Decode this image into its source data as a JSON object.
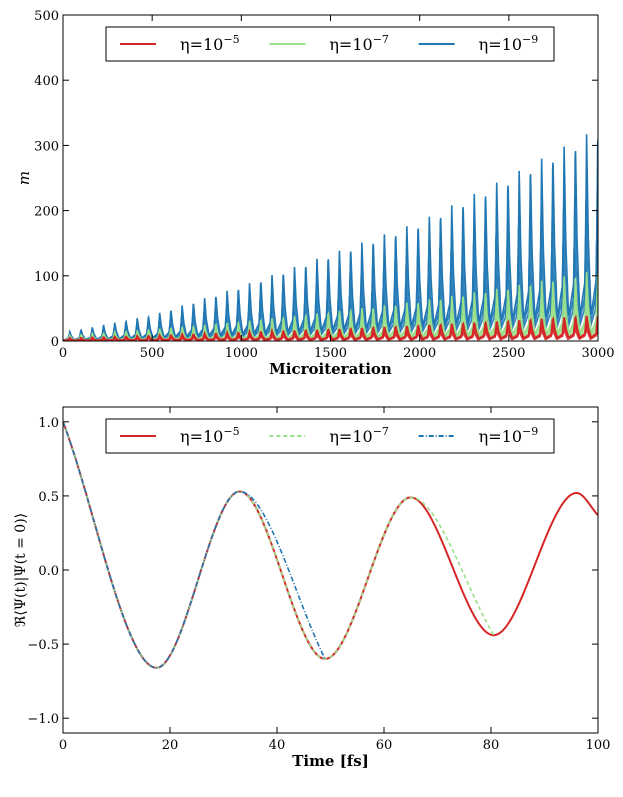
{
  "chart_data": [
    {
      "type": "line",
      "xlabel": "Microiteration",
      "ylabel": "m",
      "xlim": [
        0,
        3000
      ],
      "ylim": [
        0,
        500
      ],
      "xticks": [
        "0",
        "500",
        "1000",
        "1500",
        "2000",
        "2500",
        "3000"
      ],
      "yticks": [
        "0",
        "100",
        "200",
        "300",
        "400",
        "500"
      ],
      "legend_position": "top-center",
      "grid": false,
      "cycle_length": 63,
      "series": [
        {
          "name": "η=10⁻⁵",
          "color": "#d62728",
          "envelope_x": [
            0,
            500,
            1000,
            1500,
            2000,
            2500,
            3000
          ],
          "envelope_peak_m": [
            4,
            8,
            13,
            18,
            24,
            31,
            40
          ]
        },
        {
          "name": "η=10⁻⁷",
          "color": "#98df8a",
          "envelope_x": [
            0,
            500,
            1000,
            1500,
            2000,
            2500,
            3000
          ],
          "envelope_peak_m": [
            8,
            18,
            30,
            45,
            62,
            84,
            110
          ]
        },
        {
          "name": "η=10⁻⁹",
          "color": "#1f77b4",
          "envelope_x": [
            0,
            500,
            1000,
            1500,
            2000,
            2500,
            3000
          ],
          "envelope_peak_m": [
            12,
            40,
            85,
            135,
            185,
            255,
            330
          ]
        }
      ]
    },
    {
      "type": "line",
      "xlabel": "Time [fs]",
      "ylabel": "ℜ⟨Ψ(t)|Ψ(t = 0)⟩",
      "xlim": [
        0,
        100
      ],
      "ylim": [
        -1.1,
        1.1
      ],
      "xticks": [
        "0",
        "20",
        "40",
        "60",
        "80",
        "100"
      ],
      "yticks": [
        "1.0",
        "0.5",
        "0.0",
        "−0.5",
        "−1.0"
      ],
      "legend_position": "top-center",
      "grid": false,
      "series": [
        {
          "name": "η=10⁻⁵",
          "color": "#d62728",
          "style": "solid",
          "x": [
            0,
            17.5,
            33,
            49,
            65,
            80.5,
            96,
            100
          ],
          "y": [
            1.0,
            -0.66,
            0.53,
            -0.6,
            0.49,
            -0.44,
            0.52,
            0.37
          ]
        },
        {
          "name": "η=10⁻⁷",
          "color": "#98df8a",
          "style": "dashed",
          "x": [
            0,
            17.5,
            33,
            49,
            65,
            80.5
          ],
          "y": [
            1.0,
            -0.66,
            0.53,
            -0.6,
            0.49,
            -0.44
          ]
        },
        {
          "name": "η=10⁻⁹",
          "color": "#1f77b4",
          "style": "dashdot",
          "x": [
            0,
            17.5,
            33,
            49
          ],
          "y": [
            1.0,
            -0.66,
            0.53,
            -0.6
          ]
        }
      ]
    }
  ]
}
